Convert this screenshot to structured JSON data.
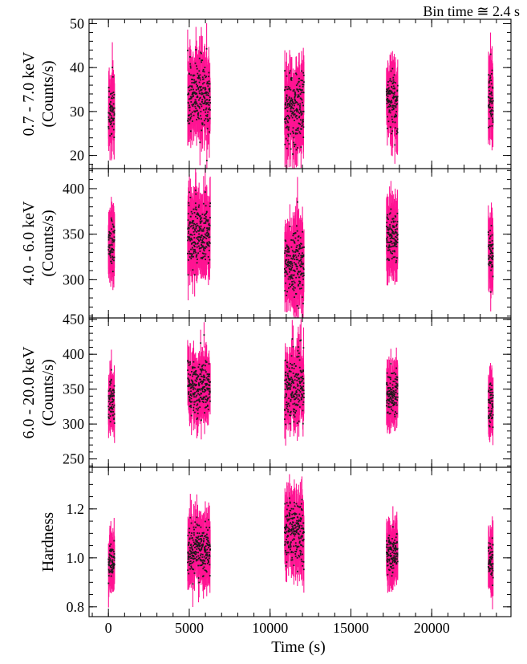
{
  "chart_data": {
    "type": "scatter",
    "annotation": "Bin time ≅ 2.4 s",
    "xlabel": "Time (s)",
    "xlim": [
      -1200,
      24900
    ],
    "x_ticks": [
      0,
      5000,
      10000,
      15000,
      20000
    ],
    "x_minor_step": 1000,
    "point_color": "#1a1a1a",
    "error_color": "#ff1493",
    "observation_segments": [
      {
        "start": 0,
        "end": 380
      },
      {
        "start": 4900,
        "end": 6300
      },
      {
        "start": 10900,
        "end": 12100
      },
      {
        "start": 17200,
        "end": 17900
      },
      {
        "start": 23500,
        "end": 23800
      }
    ],
    "panels": [
      {
        "ylabel_line1": "0.7 - 7.0 keV",
        "ylabel_line2": "(Counts/s)",
        "ylim": [
          17,
          51
        ],
        "y_ticks": [
          20,
          30,
          40,
          50
        ],
        "y_minor_step": 2,
        "segment_means": [
          30,
          33.5,
          31,
          32,
          33
        ],
        "segment_spreads": [
          4,
          5,
          5,
          4,
          4
        ],
        "error_half_width": 5
      },
      {
        "ylabel_line1": "4.0 - 6.0 keV",
        "ylabel_line2": "(Counts/s)",
        "ylim": [
          258,
          422
        ],
        "y_ticks": [
          300,
          350,
          400
        ],
        "y_minor_step": 10,
        "segment_means": [
          338,
          352,
          318,
          348,
          330
        ],
        "segment_spreads": [
          18,
          22,
          22,
          18,
          16
        ],
        "error_half_width": 26
      },
      {
        "ylabel_line1": "6.0 - 20.0 keV",
        "ylabel_line2": "(Counts/s)",
        "ylim": [
          238,
          452
        ],
        "y_ticks": [
          250,
          300,
          350,
          400,
          450
        ],
        "y_minor_step": 10,
        "segment_means": [
          330,
          355,
          355,
          345,
          330
        ],
        "segment_spreads": [
          18,
          24,
          30,
          18,
          20
        ],
        "error_half_width": 26
      },
      {
        "ylabel_line1": "Hardness",
        "ylabel_line2": "",
        "ylim": [
          0.76,
          1.37
        ],
        "y_ticks": [
          0.8,
          1.0,
          1.2
        ],
        "y_minor_step": 0.05,
        "segment_means": [
          0.98,
          1.03,
          1.1,
          1.02,
          0.99
        ],
        "segment_spreads": [
          0.05,
          0.06,
          0.08,
          0.05,
          0.05
        ],
        "error_half_width": 0.085
      }
    ]
  }
}
